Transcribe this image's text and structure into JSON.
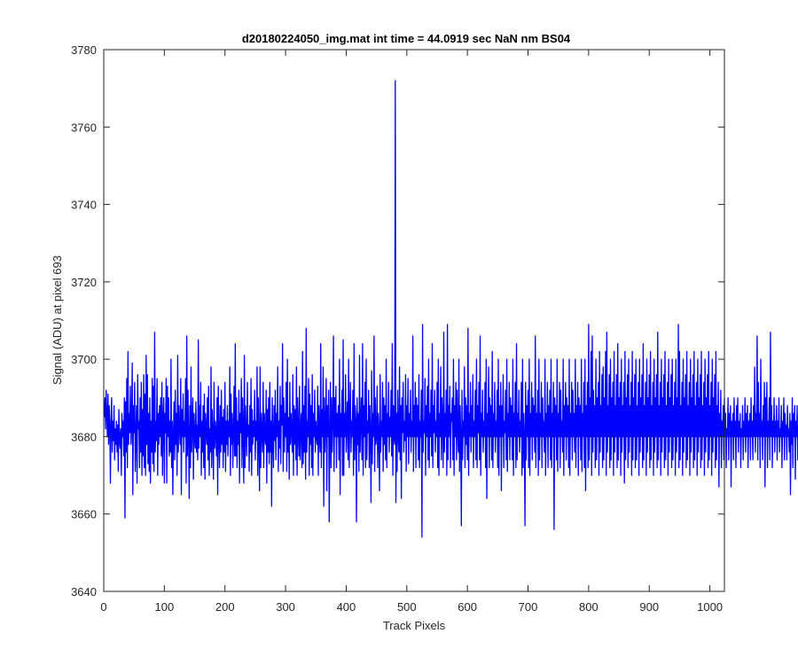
{
  "chart_data": {
    "type": "line",
    "title": "d20180224050_img.mat int time = 44.0919 sec  NaN nm BS04",
    "xlabel": "Track Pixels",
    "ylabel": "Signal (ADU) at pixel 693",
    "xlim": [
      0,
      1024
    ],
    "ylim": [
      3640,
      3780
    ],
    "xticks": [
      0,
      100,
      200,
      300,
      400,
      500,
      600,
      700,
      800,
      900,
      1000
    ],
    "yticks": [
      3640,
      3660,
      3680,
      3700,
      3720,
      3740,
      3760,
      3780
    ],
    "grid": false,
    "line_color": "#0000ff",
    "series": [
      {
        "x_start": 1,
        "x_step": 1,
        "values": [
          3685,
          3690,
          3682,
          3692,
          3686,
          3680,
          3691,
          3678,
          3688,
          3683,
          3668,
          3684,
          3690,
          3676,
          3684,
          3679,
          3688,
          3674,
          3682,
          3678,
          3684,
          3676,
          3683,
          3671,
          3687,
          3679,
          3677,
          3682,
          3670,
          3686,
          3680,
          3684,
          3675,
          3690,
          3659,
          3689,
          3676,
          3695,
          3672,
          3702,
          3678,
          3686,
          3681,
          3693,
          3678,
          3684,
          3699,
          3665,
          3688,
          3681,
          3694,
          3671,
          3680,
          3688,
          3668,
          3696,
          3682,
          3684,
          3672,
          3690,
          3676,
          3694,
          3670,
          3687,
          3675,
          3696,
          3672,
          3691,
          3670,
          3701,
          3678,
          3696,
          3673,
          3686,
          3671,
          3690,
          3668,
          3684,
          3676,
          3695,
          3673,
          3693,
          3671,
          3707,
          3676,
          3684,
          3679,
          3695,
          3670,
          3686,
          3678,
          3688,
          3680,
          3690,
          3675,
          3694,
          3670,
          3685,
          3690,
          3668,
          3686,
          3681,
          3695,
          3668,
          3693,
          3680,
          3690,
          3675,
          3684,
          3676,
          3700,
          3672,
          3684,
          3665,
          3681,
          3689,
          3674,
          3692,
          3678,
          3686,
          3670,
          3701,
          3676,
          3688,
          3682,
          3678,
          3695,
          3665,
          3687,
          3680,
          3691,
          3676,
          3684,
          3680,
          3695,
          3668,
          3706,
          3675,
          3692,
          3680,
          3664,
          3688,
          3672,
          3698,
          3676,
          3684,
          3690,
          3669,
          3686,
          3680,
          3677,
          3689,
          3676,
          3683,
          3674,
          3705,
          3677,
          3688,
          3680,
          3694,
          3670,
          3684,
          3676,
          3688,
          3672,
          3691,
          3669,
          3686,
          3682,
          3678,
          3690,
          3674,
          3693,
          3670,
          3682,
          3676,
          3698,
          3672,
          3687,
          3680,
          3669,
          3694,
          3677,
          3684,
          3681,
          3675,
          3690,
          3665,
          3693,
          3680,
          3672,
          3688,
          3676,
          3692,
          3678,
          3685,
          3672,
          3687,
          3676,
          3694,
          3671,
          3684,
          3678,
          3688,
          3675,
          3684,
          3680,
          3698,
          3670,
          3691,
          3678,
          3686,
          3672,
          3681,
          3693,
          3675,
          3704,
          3675,
          3690,
          3672,
          3684,
          3678,
          3692,
          3668,
          3686,
          3681,
          3695,
          3672,
          3690,
          3681,
          3668,
          3701,
          3672,
          3688,
          3680,
          3675,
          3694,
          3680,
          3683,
          3671,
          3688,
          3676,
          3695,
          3670,
          3687,
          3678,
          3684,
          3680,
          3692,
          3674,
          3684,
          3679,
          3698,
          3670,
          3690,
          3680,
          3666,
          3698,
          3672,
          3686,
          3681,
          3676,
          3694,
          3672,
          3686,
          3680,
          3678,
          3692,
          3668,
          3687,
          3676,
          3690,
          3673,
          3694,
          3676,
          3684,
          3662,
          3690,
          3680,
          3672,
          3688,
          3679,
          3692,
          3674,
          3686,
          3680,
          3698,
          3671,
          3684,
          3677,
          3693,
          3673,
          3688,
          3683,
          3704,
          3671,
          3690,
          3676,
          3686,
          3680,
          3694,
          3671,
          3700,
          3676,
          3685,
          3669,
          3694,
          3678,
          3686,
          3681,
          3676,
          3696,
          3670,
          3688,
          3678,
          3687,
          3674,
          3698,
          3670,
          3690,
          3681,
          3675,
          3693,
          3674,
          3682,
          3686,
          3672,
          3702,
          3673,
          3688,
          3676,
          3693,
          3669,
          3708,
          3676,
          3684,
          3680,
          3695,
          3670,
          3691,
          3678,
          3688,
          3672,
          3696,
          3670,
          3686,
          3680,
          3692,
          3676,
          3684,
          3680,
          3678,
          3693,
          3670,
          3688,
          3680,
          3676,
          3704,
          3672,
          3687,
          3680,
          3698,
          3662,
          3690,
          3676,
          3684,
          3695,
          3666,
          3688,
          3680,
          3692,
          3658,
          3680,
          3694,
          3672,
          3690,
          3676,
          3684,
          3706,
          3671,
          3690,
          3680,
          3693,
          3672,
          3686,
          3680,
          3688,
          3674,
          3700,
          3665,
          3686,
          3680,
          3692,
          3670,
          3705,
          3670,
          3686,
          3680,
          3696,
          3676,
          3683,
          3689,
          3674,
          3700,
          3672,
          3686,
          3694,
          3676,
          3684,
          3680,
          3692,
          3670,
          3704,
          3674,
          3688,
          3684,
          3658,
          3690,
          3678,
          3686,
          3671,
          3701,
          3676,
          3684,
          3690,
          3674,
          3704,
          3670,
          3688,
          3680,
          3694,
          3672,
          3700,
          3674,
          3684,
          3681,
          3692,
          3672,
          3688,
          3680,
          3663,
          3697,
          3673,
          3686,
          3680,
          3706,
          3671,
          3690,
          3678,
          3680,
          3693,
          3672,
          3686,
          3680,
          3666,
          3696,
          3676,
          3684,
          3680,
          3694,
          3671,
          3690,
          3678,
          3688,
          3674,
          3700,
          3672,
          3686,
          3680,
          3694,
          3676,
          3685,
          3680,
          3692,
          3675,
          3704,
          3670,
          3688,
          3680,
          3678,
          3772,
          3663,
          3686,
          3671,
          3692,
          3680,
          3676,
          3698,
          3674,
          3688,
          3664,
          3690,
          3681,
          3694,
          3676,
          3684,
          3679,
          3696,
          3671,
          3688,
          3680,
          3695,
          3673,
          3686,
          3680,
          3692,
          3676,
          3684,
          3680,
          3706,
          3671,
          3688,
          3680,
          3694,
          3672,
          3690,
          3680,
          3688,
          3674,
          3696,
          3672,
          3684,
          3680,
          3692,
          3654,
          3709,
          3676,
          3684,
          3681,
          3695,
          3670,
          3688,
          3680,
          3693,
          3674,
          3700,
          3672,
          3686,
          3680,
          3692,
          3675,
          3704,
          3672,
          3688,
          3681,
          3692,
          3676,
          3684,
          3680,
          3694,
          3672,
          3700,
          3670,
          3686,
          3680,
          3698,
          3674,
          3690,
          3684,
          3672,
          3707,
          3676,
          3686,
          3680,
          3692,
          3670,
          3709,
          3674,
          3688,
          3680,
          3693,
          3672,
          3686,
          3684,
          3690,
          3674,
          3700,
          3670,
          3688,
          3680,
          3694,
          3674,
          3692,
          3681,
          3676,
          3700,
          3671,
          3688,
          3680,
          3657,
          3692,
          3674,
          3684,
          3680,
          3698,
          3672,
          3690,
          3678,
          3688,
          3674,
          3708,
          3670,
          3686,
          3680,
          3694,
          3676,
          3688,
          3680,
          3696,
          3672,
          3684,
          3680,
          3692,
          3674,
          3700,
          3672,
          3688,
          3681,
          3694,
          3674,
          3706,
          3670,
          3686,
          3680,
          3692,
          3676,
          3684,
          3680,
          3694,
          3672,
          3700,
          3664,
          3686,
          3680,
          3698,
          3672,
          3690,
          3680,
          3688,
          3674,
          3702,
          3672,
          3686,
          3680,
          3694,
          3676,
          3684,
          3680,
          3692,
          3672,
          3700,
          3670,
          3688,
          3680,
          3694,
          3666,
          3688,
          3680,
          3696,
          3672,
          3684,
          3681,
          3692,
          3674,
          3700,
          3671,
          3686,
          3680,
          3694,
          3674,
          3690,
          3680,
          3688,
          3674,
          3700,
          3670,
          3686,
          3680,
          3694,
          3672,
          3704,
          3674,
          3686,
          3680,
          3692,
          3676,
          3684,
          3680,
          3694,
          3670,
          3700,
          3672,
          3686,
          3680,
          3657,
          3694,
          3674,
          3688,
          3680,
          3692,
          3672,
          3700,
          3670,
          3686,
          3680,
          3694,
          3674,
          3690,
          3680,
          3688,
          3676,
          3706,
          3672,
          3686,
          3680,
          3692,
          3670,
          3700,
          3674,
          3686,
          3680,
          3694,
          3672,
          3690,
          3680,
          3684,
          3676,
          3700,
          3670,
          3686,
          3680,
          3694,
          3672,
          3688,
          3680,
          3692,
          3674,
          3700,
          3672,
          3686,
          3680,
          3694,
          3656,
          3690,
          3680,
          3688,
          3674,
          3700,
          3671,
          3686,
          3680,
          3694,
          3672,
          3692,
          3680,
          3684,
          3676,
          3700,
          3670,
          3688,
          3680,
          3694,
          3674,
          3690,
          3680,
          3688,
          3672,
          3700,
          3670,
          3686,
          3680,
          3694,
          3674,
          3692,
          3680,
          3686,
          3676,
          3700,
          3672,
          3688,
          3680,
          3694,
          3670,
          3690,
          3680,
          3688,
          3674,
          3700,
          3671,
          3686,
          3680,
          3694,
          3672,
          3700,
          3666,
          3688,
          3680,
          3694,
          3672,
          3709,
          3674,
          3690,
          3680,
          3702,
          3670,
          3706,
          3676,
          3692,
          3680,
          3688,
          3672,
          3700,
          3674,
          3690,
          3680,
          3694,
          3670,
          3702,
          3676,
          3688,
          3680,
          3696,
          3672,
          3698,
          3674,
          3690,
          3680,
          3702,
          3670,
          3707,
          3676,
          3688,
          3680,
          3696,
          3672,
          3700,
          3674,
          3690,
          3680,
          3694,
          3670,
          3702,
          3676,
          3688,
          3680,
          3696,
          3672,
          3704,
          3674,
          3690,
          3680,
          3694,
          3670,
          3700,
          3676,
          3688,
          3680,
          3694,
          3668,
          3702,
          3674,
          3690,
          3680,
          3696,
          3672,
          3700,
          3676,
          3688,
          3680,
          3694,
          3670,
          3702,
          3674,
          3690,
          3680,
          3696,
          3672,
          3700,
          3674,
          3688,
          3680,
          3694,
          3670,
          3700,
          3676,
          3690,
          3680,
          3696,
          3672,
          3704,
          3674,
          3688,
          3680,
          3694,
          3670,
          3700,
          3676,
          3690,
          3680,
          3696,
          3672,
          3702,
          3674,
          3688,
          3680,
          3694,
          3670,
          3700,
          3676,
          3690,
          3680,
          3696,
          3672,
          3707,
          3674,
          3688,
          3680,
          3694,
          3670,
          3700,
          3676,
          3690,
          3680,
          3696,
          3672,
          3702,
          3674,
          3688,
          3680,
          3694,
          3670,
          3700,
          3676,
          3690,
          3680,
          3696,
          3672,
          3700,
          3674,
          3688,
          3680,
          3694,
          3670,
          3700,
          3676,
          3690,
          3680,
          3709,
          3672,
          3702,
          3674,
          3688,
          3680,
          3694,
          3670,
          3700,
          3676,
          3690,
          3680,
          3696,
          3672,
          3702,
          3674,
          3688,
          3680,
          3694,
          3670,
          3700,
          3676,
          3690,
          3680,
          3696,
          3672,
          3702,
          3674,
          3688,
          3680,
          3694,
          3670,
          3700,
          3676,
          3690,
          3680,
          3696,
          3672,
          3702,
          3674,
          3688,
          3680,
          3694,
          3670,
          3700,
          3676,
          3690,
          3680,
          3696,
          3672,
          3702,
          3674,
          3688,
          3680,
          3694,
          3670,
          3700,
          3676,
          3690,
          3680,
          3696,
          3672,
          3702,
          3674,
          3688,
          3680,
          3694,
          3667,
          3686,
          3680,
          3692,
          3672,
          3684,
          3680,
          3688,
          3674,
          3690,
          3680,
          3686,
          3672,
          3682,
          3680,
          3690,
          3674,
          3686,
          3680,
          3688,
          3667,
          3684,
          3680,
          3686,
          3674,
          3690,
          3680,
          3684,
          3672,
          3688,
          3680,
          3690,
          3676,
          3684,
          3680,
          3686,
          3672,
          3682,
          3680,
          3688,
          3674,
          3684,
          3680,
          3690,
          3676,
          3686,
          3680,
          3688,
          3672,
          3684,
          3680,
          3686,
          3674,
          3690,
          3680,
          3684,
          3674,
          3688,
          3680,
          3698,
          3676,
          3686,
          3680,
          3706,
          3674,
          3694,
          3680,
          3686,
          3672,
          3700,
          3680,
          3684,
          3674,
          3688,
          3680,
          3694,
          3667,
          3690,
          3680,
          3694,
          3672,
          3684,
          3680,
          3690,
          3674,
          3707,
          3680,
          3688,
          3672,
          3684,
          3680,
          3690,
          3676,
          3684,
          3680,
          3688,
          3674,
          3684,
          3680,
          3690,
          3676,
          3682,
          3680,
          3688,
          3672,
          3684,
          3680,
          3690,
          3674,
          3686,
          3680,
          3683,
          3674,
          3688,
          3680,
          3682,
          3676,
          3686,
          3665,
          3684,
          3678,
          3690,
          3672,
          3686,
          3680,
          3688,
          3669,
          3684,
          3680,
          3688,
          3674,
          3682,
          3680
        ]
      }
    ]
  }
}
